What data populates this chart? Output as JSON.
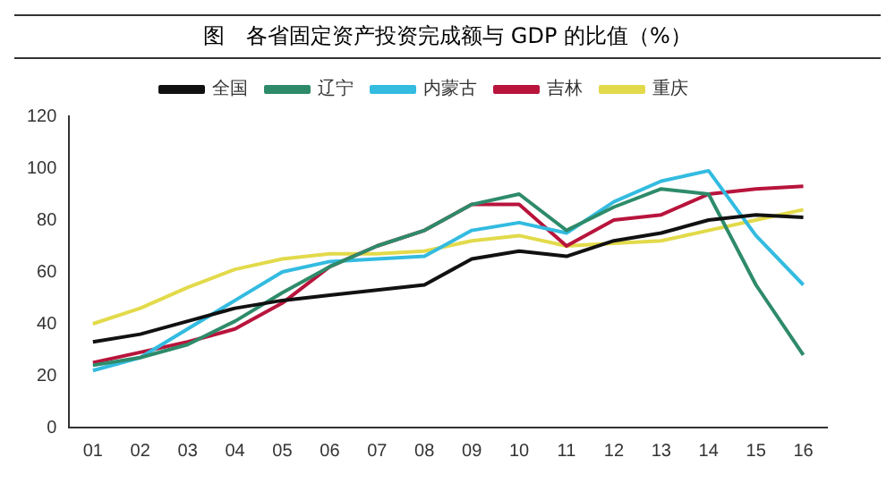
{
  "chart_data": {
    "type": "line",
    "title": "图　各省固定资产投资完成额与 GDP 的比值（%）",
    "categories": [
      "01",
      "02",
      "03",
      "04",
      "05",
      "06",
      "07",
      "08",
      "09",
      "10",
      "11",
      "12",
      "13",
      "14",
      "15",
      "16"
    ],
    "series": [
      {
        "name": "全国",
        "color": "#111111",
        "values": [
          33,
          36,
          41,
          46,
          49,
          51,
          53,
          55,
          65,
          68,
          66,
          72,
          75,
          80,
          82,
          81
        ]
      },
      {
        "name": "辽宁",
        "color": "#2e8b6a",
        "values": [
          24,
          27,
          32,
          41,
          52,
          62,
          70,
          76,
          86,
          90,
          76,
          85,
          92,
          90,
          55,
          28
        ]
      },
      {
        "name": "内蒙古",
        "color": "#33bbe0",
        "values": [
          22,
          27,
          38,
          49,
          60,
          64,
          65,
          66,
          76,
          79,
          75,
          87,
          95,
          99,
          74,
          55
        ]
      },
      {
        "name": "吉林",
        "color": "#b8143c",
        "values": [
          25,
          29,
          33,
          38,
          48,
          62,
          70,
          76,
          86,
          86,
          70,
          80,
          82,
          90,
          92,
          93
        ]
      },
      {
        "name": "重庆",
        "color": "#e2da4a",
        "values": [
          40,
          46,
          54,
          61,
          65,
          67,
          67,
          68,
          72,
          74,
          70,
          71,
          72,
          76,
          80,
          84
        ]
      }
    ],
    "ylim": [
      0,
      120
    ],
    "yticks": [
      0,
      20,
      40,
      60,
      80,
      100,
      120
    ],
    "grid": false,
    "legend": "top",
    "marker": "none",
    "line_style": "solid"
  }
}
